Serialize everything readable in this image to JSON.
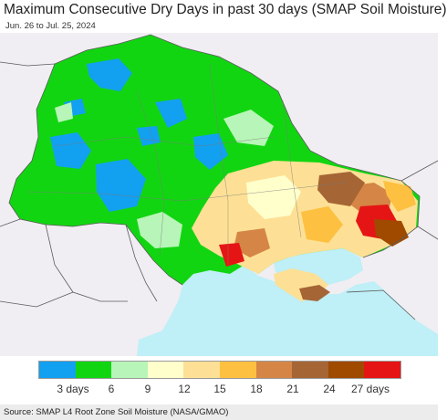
{
  "title": "Maximum Consecutive Dry Days in past 30 days (SMAP Soil Moisture)",
  "subtitle": "Jun. 26 to Jul. 25, 2024",
  "source": "Source: SMAP L4 Root Zone Soil Moisture (NASA/GMAO)",
  "legend": {
    "colors": [
      "#12a0f0",
      "#12d512",
      "#b8f5b8",
      "#ffffcc",
      "#fde095",
      "#fdc040",
      "#d58545",
      "#a56535",
      "#a04a00",
      "#e61515"
    ],
    "labels": [
      "3 days",
      "6",
      "9",
      "12",
      "15",
      "18",
      "21",
      "24",
      "27 days"
    ]
  },
  "map_colors": {
    "background": "#f0eef2",
    "sea": "#bfeff7",
    "border": "#5a5a5a"
  }
}
